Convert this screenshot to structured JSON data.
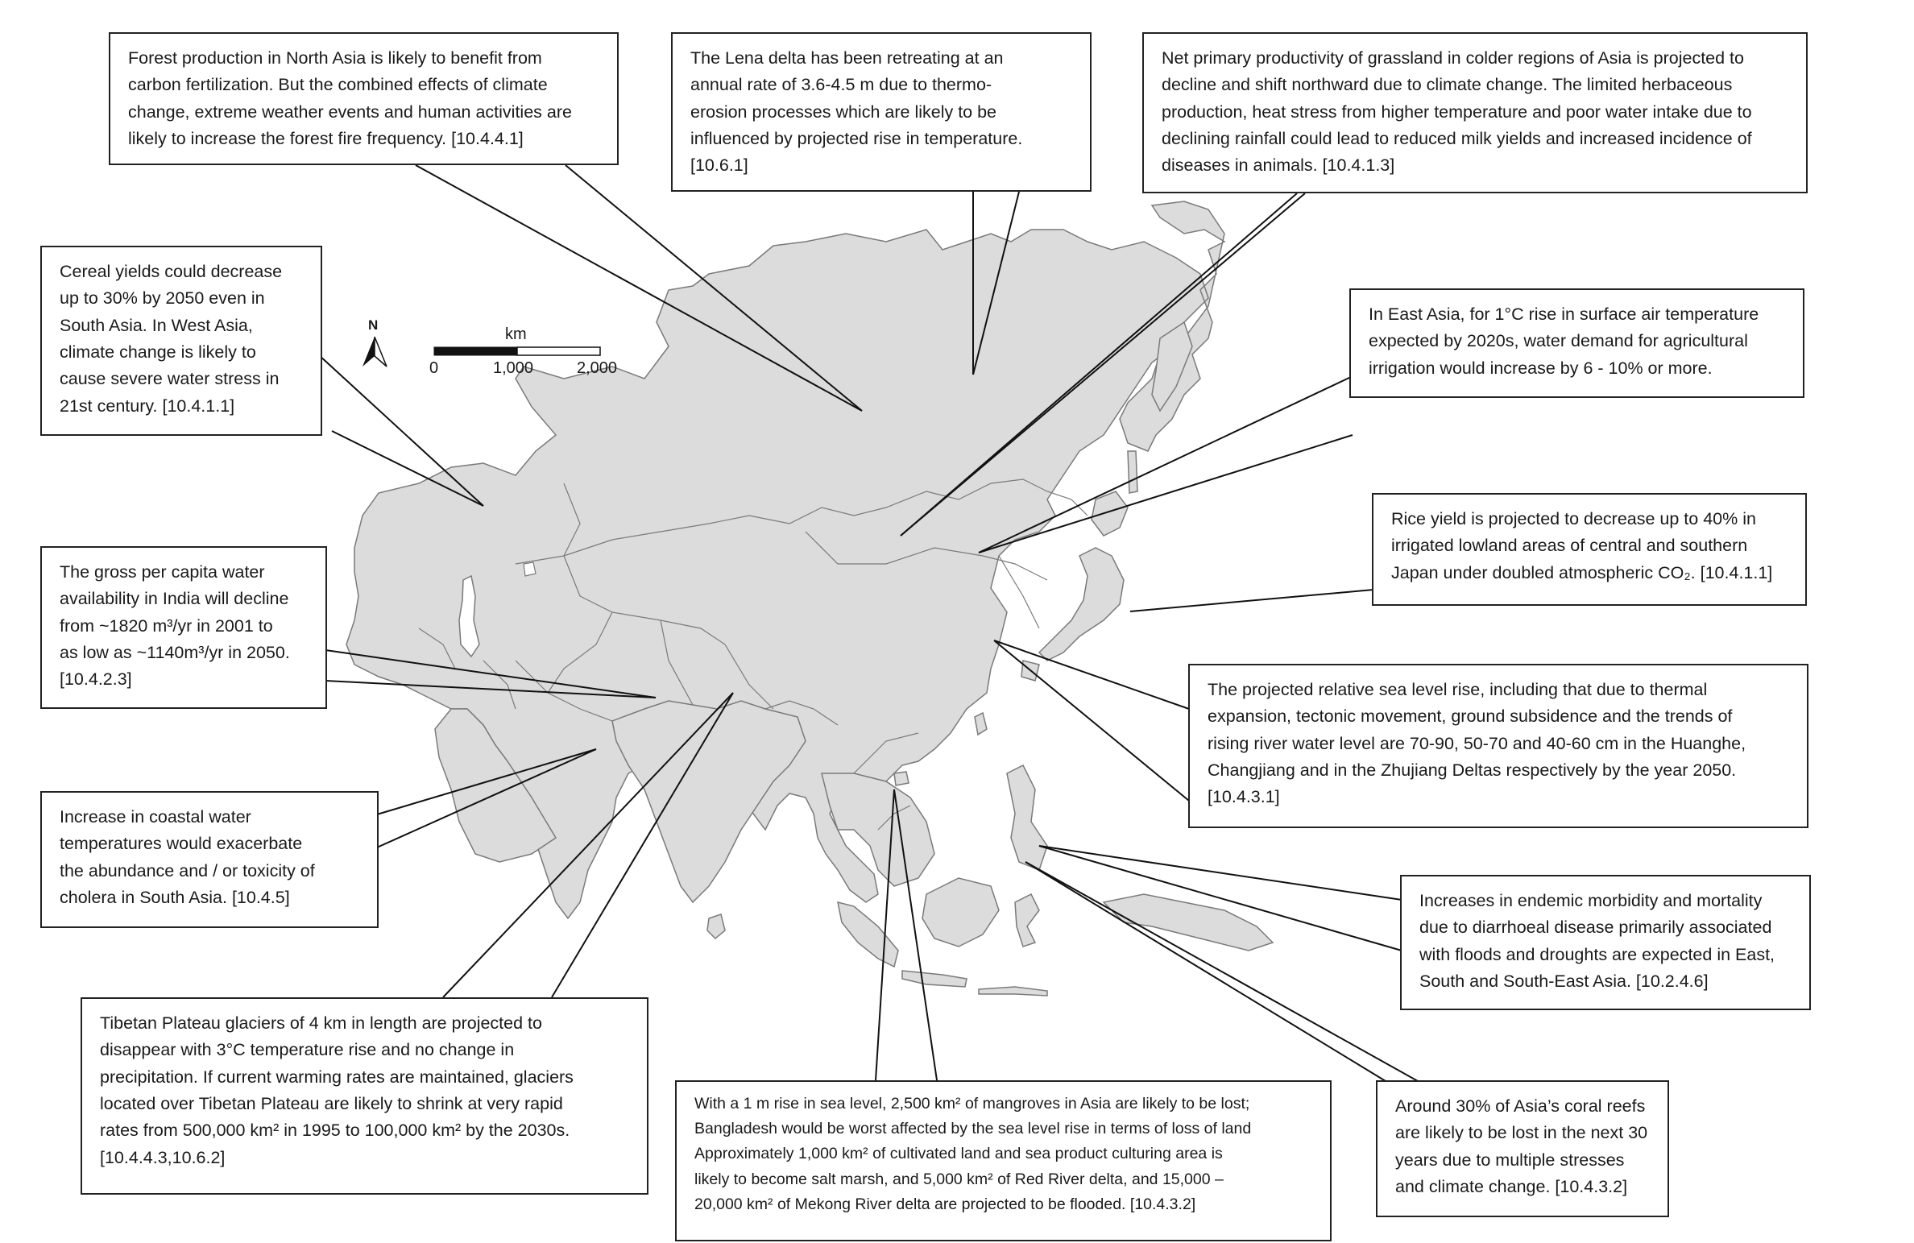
{
  "map": {
    "north_arrow_label": "N",
    "scale": {
      "unit": "km",
      "ticks": [
        "0",
        "1,000",
        "2,000"
      ]
    },
    "land_color": "#dcdcdc",
    "border_color": "#7a7a7a"
  },
  "callouts": [
    {
      "id": "north-asia-forest",
      "lines": [
        "Forest production in North Asia is likely to benefit from",
        "carbon fertilization. But the combined effects of climate",
        "change, extreme weather events and human activities are",
        "likely to increase the forest fire frequency. [10.4.4.1]"
      ]
    },
    {
      "id": "lena-delta",
      "lines": [
        "The Lena delta has been retreating at  an",
        "annual rate of 3.6-4.5 m due to thermo-",
        "erosion processes which are likely to be",
        "influenced by projected rise in temperature.",
        "[10.6.1]"
      ]
    },
    {
      "id": "grassland-productivity",
      "lines": [
        "Net primary productivity of grassland in colder regions of Asia is projected to",
        "decline and shift northward due to climate change. The limited herbaceous",
        "production, heat stress from higher temperature and poor water intake due to",
        "declining rainfall could lead to reduced milk yields and increased incidence of",
        "diseases in animals. [10.4.1.3]"
      ]
    },
    {
      "id": "cereal-yields",
      "lines": [
        "Cereal yields could decrease",
        "up to 30% by 2050 even in",
        "South Asia. In West Asia,",
        "climate change is likely to",
        "cause severe water stress in",
        "21st century. [10.4.1.1]"
      ]
    },
    {
      "id": "east-asia-irrigation",
      "lines": [
        "In East Asia, for 1°C rise in surface air temperature",
        "expected by 2020s, water demand for agricultural",
        "irrigation would increase by 6 - 10% or more."
      ]
    },
    {
      "id": "rice-yield-japan",
      "lines": [
        "Rice yield is projected to decrease up to 40% in",
        "irrigated lowland areas of central and southern",
        "Japan under doubled atmospheric CO₂. [10.4.1.1]"
      ]
    },
    {
      "id": "india-water",
      "lines": [
        "The gross per capita water",
        "availability in India will decline",
        "from ~1820 m³/yr in 2001 to",
        "as low as ~1140m³/yr in 2050.",
        "[10.4.2.3]"
      ]
    },
    {
      "id": "sea-level-deltas",
      "lines": [
        "The projected relative sea level rise, including that due to thermal",
        "expansion, tectonic movement, ground subsidence and the trends of",
        "rising river water level are 70-90, 50-70 and 40-60 cm in the Huanghe,",
        "Changjiang and in the Zhujiang Deltas respectively by the year 2050.",
        " [10.4.3.1]"
      ]
    },
    {
      "id": "cholera",
      "lines": [
        "Increase in coastal water",
        "temperatures would exacerbate",
        "the abundance and / or toxicity of",
        "cholera in South Asia. [10.4.5]"
      ]
    },
    {
      "id": "diarrhoeal-disease",
      "lines": [
        "Increases in endemic morbidity and mortality",
        "due to diarrhoeal disease primarily associated",
        "with floods and droughts are expected in East,",
        "South and South-East Asia. [10.2.4.6]"
      ]
    },
    {
      "id": "tibetan-glaciers",
      "lines": [
        "Tibetan Plateau glaciers of 4 km in length are projected to",
        "disappear with 3°C temperature rise and no change in",
        "precipitation. If current warming rates are maintained, glaciers",
        "located over Tibetan Plateau are likely to shrink at very rapid",
        "rates from 500,000 km² in 1995 to 100,000 km² by the 2030s.",
        "[10.4.4.3,10.6.2]"
      ]
    },
    {
      "id": "sea-level-mangroves",
      "lines": [
        "With a 1 m rise in sea level, 2,500 km²  of mangroves in Asia are likely to be lost;",
        "Bangladesh would be worst affected by the sea level rise in terms of loss of land",
        "Approximately 1,000 km² of cultivated land and sea product culturing area is",
        "likely to become salt marsh, and 5,000 km² of Red River delta, and 15,000 –",
        "20,000 km² of Mekong River delta are projected to be flooded. [10.4.3.2]"
      ]
    },
    {
      "id": "coral-reefs",
      "lines": [
        "Around 30% of Asia’s coral reefs",
        "are likely to be lost in the next 30",
        "years due to multiple stresses",
        "and climate change. [10.4.3.2]"
      ]
    }
  ]
}
